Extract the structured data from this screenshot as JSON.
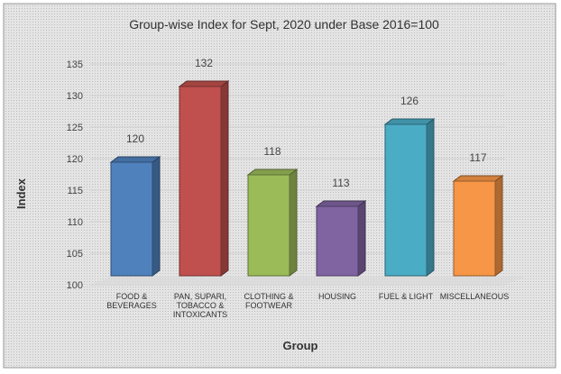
{
  "chart_data": {
    "type": "bar",
    "title": "Group-wise Index for Sept, 2020 under Base 2016=100",
    "xlabel": "Group",
    "ylabel": "Index",
    "ylim": [
      100,
      135
    ],
    "yticks": [
      100,
      105,
      110,
      115,
      120,
      125,
      130,
      135
    ],
    "grid": true,
    "categories": [
      "FOOD & BEVERAGES",
      "PAN, SUPARI, TOBACCO & INTOXICANTS",
      "CLOTHING & FOOTWEAR",
      "HOUSING",
      "FUEL & LIGHT",
      "MISCELLANEOUS"
    ],
    "values": [
      120,
      132,
      118,
      113,
      126,
      117
    ],
    "data_labels": [
      "120",
      "132",
      "118",
      "113",
      "126",
      "117"
    ],
    "colors": [
      "#4f81bd",
      "#c0504d",
      "#9bbb59",
      "#8064a2",
      "#4bacc6",
      "#f79646"
    ]
  }
}
